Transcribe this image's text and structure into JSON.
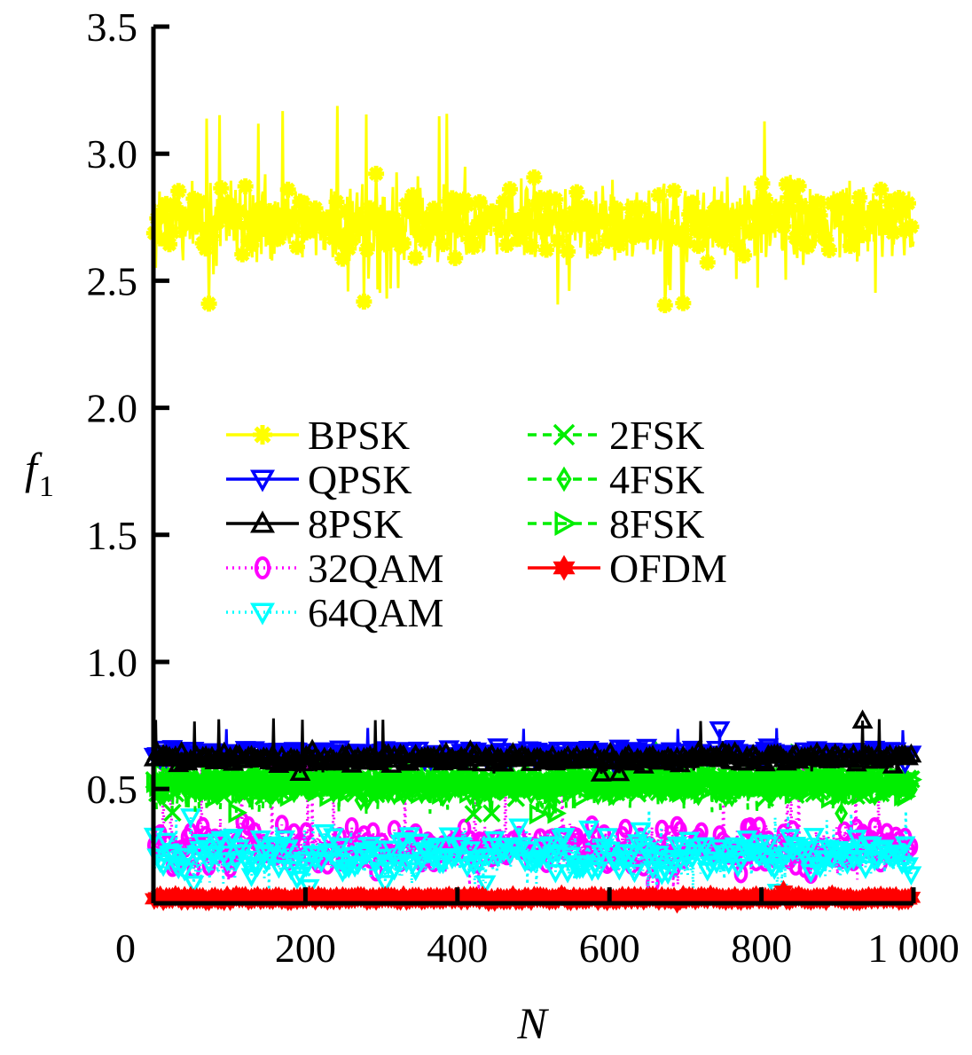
{
  "chart_data": {
    "type": "line",
    "xlabel": "N",
    "ylabel_main": "f",
    "ylabel_sub": "1",
    "xlim": [
      0,
      1000
    ],
    "ylim": [
      0.05,
      3.5
    ],
    "xticks": [
      {
        "value": 0,
        "label": "0"
      },
      {
        "value": 200,
        "label": "200"
      },
      {
        "value": 400,
        "label": "400"
      },
      {
        "value": 600,
        "label": "600"
      },
      {
        "value": 800,
        "label": "800"
      },
      {
        "value": 1000,
        "label": "1 000"
      }
    ],
    "yticks": [
      {
        "value": 0.5,
        "label": "0.5"
      },
      {
        "value": 1.0,
        "label": "1.0"
      },
      {
        "value": 1.5,
        "label": "1.5"
      },
      {
        "value": 2.0,
        "label": "2.0"
      },
      {
        "value": 2.5,
        "label": "2.5"
      },
      {
        "value": 3.0,
        "label": "3.0"
      },
      {
        "value": 3.5,
        "label": "3.5"
      }
    ],
    "grid": false,
    "legend_position": "center-left",
    "series": [
      {
        "name": "BPSK",
        "color": "#ffff00",
        "marker": "asterisk",
        "dash": "solid",
        "center": 2.73,
        "spread": 0.17,
        "min": 2.4,
        "max": 3.2,
        "x_end": 1000
      },
      {
        "name": "QPSK",
        "color": "#0000ff",
        "marker": "triangle-down",
        "dash": "solid",
        "center": 0.64,
        "spread": 0.025,
        "min": 0.6,
        "max": 0.74,
        "x_end": 1000
      },
      {
        "name": "8PSK",
        "color": "#000000",
        "marker": "triangle-up",
        "dash": "solid",
        "center": 0.62,
        "spread": 0.03,
        "min": 0.56,
        "max": 0.78,
        "x_end": 1000
      },
      {
        "name": "32QAM",
        "color": "#ff00ff",
        "marker": "circle",
        "dash": "dotted",
        "center": 0.27,
        "spread": 0.09,
        "min": 0.1,
        "max": 0.62,
        "x_end": 1000
      },
      {
        "name": "64QAM",
        "color": "#00ffff",
        "marker": "triangle-down",
        "dash": "dotted",
        "center": 0.24,
        "spread": 0.09,
        "min": 0.09,
        "max": 0.42,
        "x_end": 1000
      },
      {
        "name": "2FSK",
        "color": "#00ee00",
        "marker": "x",
        "dash": "dashed",
        "center": 0.52,
        "spread": 0.06,
        "min": 0.4,
        "max": 0.66,
        "x_end": 1000
      },
      {
        "name": "4FSK",
        "color": "#00ee00",
        "marker": "diamond",
        "dash": "dashed",
        "center": 0.52,
        "spread": 0.06,
        "min": 0.4,
        "max": 0.66,
        "x_end": 1000
      },
      {
        "name": "8FSK",
        "color": "#00ee00",
        "marker": "triangle-right",
        "dash": "dashed",
        "center": 0.52,
        "spread": 0.06,
        "min": 0.4,
        "max": 0.66,
        "x_end": 1000
      },
      {
        "name": "OFDM",
        "color": "#ff0000",
        "marker": "hexagram",
        "dash": "solid",
        "center": 0.07,
        "spread": 0.01,
        "min": 0.05,
        "max": 0.1,
        "x_end": 1000
      }
    ]
  }
}
